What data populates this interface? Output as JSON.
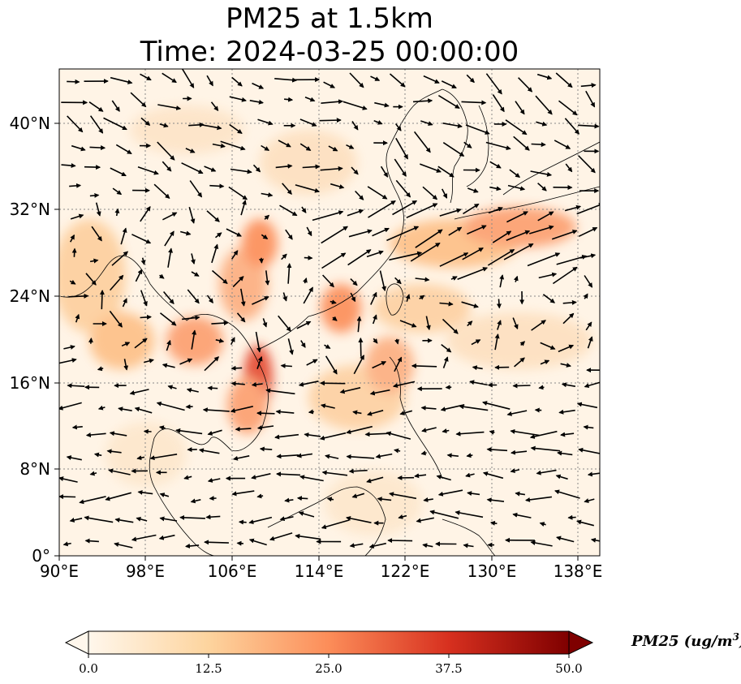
{
  "title": {
    "line1": "PM25 at 1.5km",
    "line2": "Time: 2024-03-25 00:00:00"
  },
  "map": {
    "extent": {
      "lon": [
        90,
        140
      ],
      "lat": [
        0,
        45
      ]
    },
    "gridlines": true,
    "coastlines": true,
    "field": "PM25",
    "level": "1.5km",
    "vectors": "wind"
  },
  "axes": {
    "lat_ticks": [
      "40°N",
      "32°N",
      "24°N",
      "16°N",
      "8°N",
      "0°"
    ],
    "lon_ticks": [
      "90°E",
      "98°E",
      "106°E",
      "114°E",
      "122°E",
      "130°E",
      "138°E"
    ]
  },
  "colorbar": {
    "colormap": "OrRd",
    "min": 0.0,
    "max": 50.0,
    "extend": "both",
    "ticks": [
      "0.0",
      "12.5",
      "25.0",
      "37.5",
      "50.0"
    ],
    "label_text": "PM25 (ug/m",
    "label_exp": "3",
    "label_close": ")",
    "colors": [
      "#fff7ec",
      "#fdd49e",
      "#fc8d59",
      "#d7301f",
      "#7f0000"
    ]
  }
}
